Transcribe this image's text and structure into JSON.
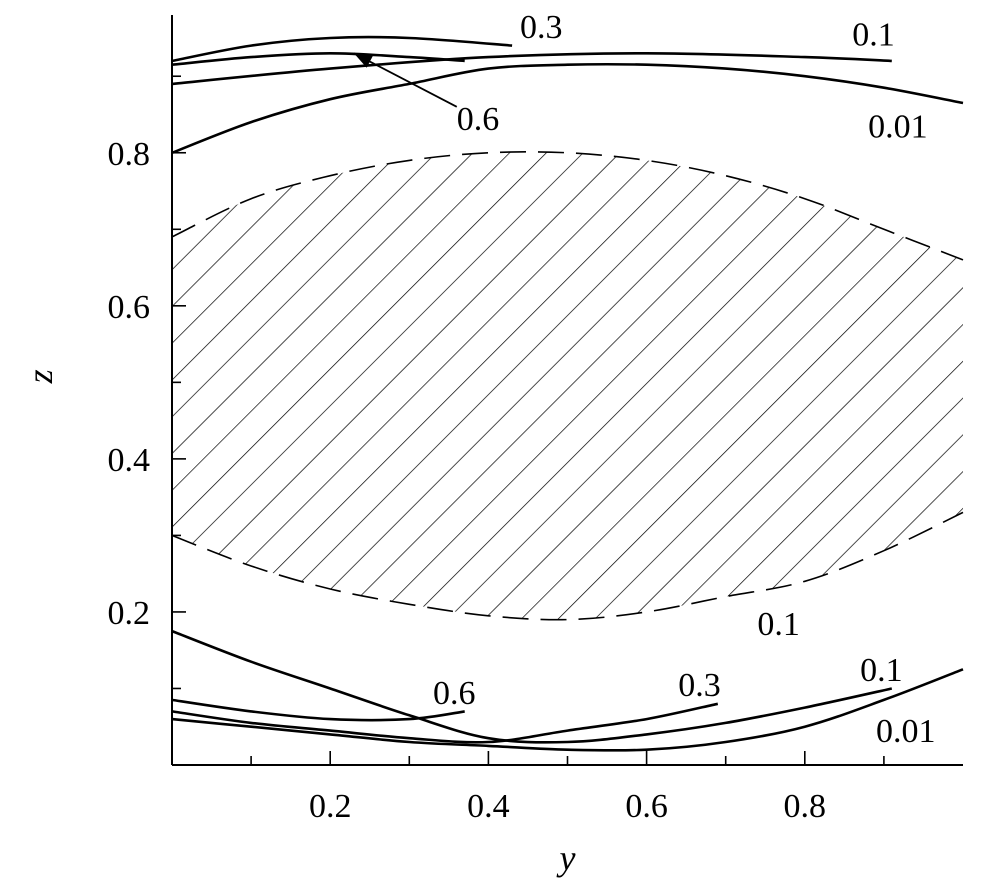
{
  "chart_data": {
    "type": "line",
    "title": "",
    "xlabel": "y",
    "ylabel": "z",
    "xlim": [
      0,
      1.0
    ],
    "ylim": [
      0,
      0.98
    ],
    "x_ticks": [
      0.2,
      0.4,
      0.6,
      0.8
    ],
    "y_ticks": [
      0.2,
      0.4,
      0.6,
      0.8
    ],
    "x_tick_labels": [
      "0.2",
      "0.4",
      "0.6",
      "0.8"
    ],
    "y_tick_labels": [
      "0.2",
      "0.4",
      "0.6",
      "0.8"
    ],
    "grid": false,
    "hatched_region": {
      "label": "0.1",
      "upper": [
        [
          0,
          0.69
        ],
        [
          0.1,
          0.74
        ],
        [
          0.2,
          0.77
        ],
        [
          0.3,
          0.79
        ],
        [
          0.4,
          0.8
        ],
        [
          0.5,
          0.8
        ],
        [
          0.6,
          0.79
        ],
        [
          0.7,
          0.77
        ],
        [
          0.8,
          0.74
        ],
        [
          0.9,
          0.7
        ],
        [
          1.0,
          0.66
        ]
      ],
      "lower": [
        [
          0,
          0.3
        ],
        [
          0.1,
          0.26
        ],
        [
          0.2,
          0.23
        ],
        [
          0.3,
          0.21
        ],
        [
          0.4,
          0.195
        ],
        [
          0.5,
          0.19
        ],
        [
          0.6,
          0.2
        ],
        [
          0.7,
          0.22
        ],
        [
          0.8,
          0.24
        ],
        [
          0.9,
          0.28
        ],
        [
          1.0,
          0.33
        ]
      ]
    },
    "series": [
      {
        "name": "0.3",
        "label_at": [
          0.44,
          0.95
        ],
        "points": [
          [
            0,
            0.92
          ],
          [
            0.1,
            0.94
          ],
          [
            0.2,
            0.95
          ],
          [
            0.3,
            0.95
          ],
          [
            0.43,
            0.94
          ]
        ]
      },
      {
        "name": "0.6",
        "label_at": [
          0.36,
          0.83
        ],
        "points": [
          [
            0,
            0.915
          ],
          [
            0.1,
            0.925
          ],
          [
            0.2,
            0.93
          ],
          [
            0.3,
            0.925
          ],
          [
            0.37,
            0.92
          ]
        ]
      },
      {
        "name": "0.1",
        "label_at": [
          0.86,
          0.94
        ],
        "points": [
          [
            0,
            0.89
          ],
          [
            0.2,
            0.91
          ],
          [
            0.4,
            0.925
          ],
          [
            0.6,
            0.93
          ],
          [
            0.8,
            0.925
          ],
          [
            0.91,
            0.92
          ]
        ]
      },
      {
        "name": "0.01",
        "label_at": [
          0.88,
          0.82
        ],
        "points": [
          [
            0,
            0.8
          ],
          [
            0.1,
            0.84
          ],
          [
            0.2,
            0.87
          ],
          [
            0.3,
            0.89
          ],
          [
            0.4,
            0.91
          ],
          [
            0.5,
            0.915
          ],
          [
            0.6,
            0.915
          ],
          [
            0.7,
            0.91
          ],
          [
            0.8,
            0.9
          ],
          [
            0.9,
            0.885
          ],
          [
            1.0,
            0.865
          ]
        ]
      },
      {
        "name": "0.6",
        "label_at": [
          0.33,
          0.08
        ],
        "points": [
          [
            0,
            0.085
          ],
          [
            0.1,
            0.07
          ],
          [
            0.2,
            0.06
          ],
          [
            0.3,
            0.06
          ],
          [
            0.37,
            0.07
          ]
        ]
      },
      {
        "name": "0.3",
        "label_at": [
          0.64,
          0.09
        ],
        "points": [
          [
            0,
            0.07
          ],
          [
            0.1,
            0.055
          ],
          [
            0.2,
            0.045
          ],
          [
            0.3,
            0.035
          ],
          [
            0.4,
            0.03
          ],
          [
            0.5,
            0.045
          ],
          [
            0.6,
            0.06
          ],
          [
            0.69,
            0.08
          ]
        ]
      },
      {
        "name": "0.1",
        "label_at": [
          0.87,
          0.11
        ],
        "points": [
          [
            0,
            0.175
          ],
          [
            0.1,
            0.135
          ],
          [
            0.2,
            0.1
          ],
          [
            0.3,
            0.065
          ],
          [
            0.4,
            0.035
          ],
          [
            0.5,
            0.03
          ],
          [
            0.6,
            0.04
          ],
          [
            0.7,
            0.055
          ],
          [
            0.8,
            0.075
          ],
          [
            0.91,
            0.1
          ]
        ]
      },
      {
        "name": "0.01",
        "label_at": [
          0.89,
          0.03
        ],
        "points": [
          [
            0,
            0.06
          ],
          [
            0.1,
            0.05
          ],
          [
            0.2,
            0.04
          ],
          [
            0.3,
            0.03
          ],
          [
            0.4,
            0.025
          ],
          [
            0.5,
            0.02
          ],
          [
            0.6,
            0.02
          ],
          [
            0.7,
            0.03
          ],
          [
            0.8,
            0.05
          ],
          [
            0.9,
            0.085
          ],
          [
            1.0,
            0.125
          ]
        ]
      }
    ],
    "annotations": [
      {
        "type": "arrow",
        "from": [
          0.36,
          0.86
        ],
        "to": [
          0.23,
          0.93
        ]
      }
    ]
  }
}
